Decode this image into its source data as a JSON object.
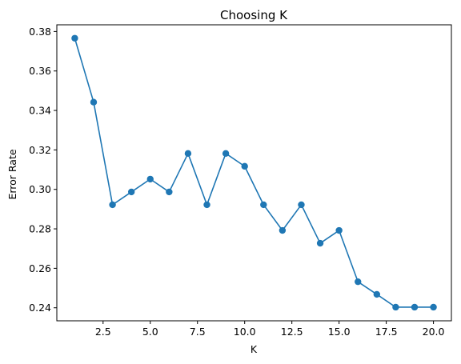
{
  "chart_data": {
    "type": "line",
    "title": "Choosing K",
    "xlabel": "K",
    "ylabel": "Error Rate",
    "xlim": [
      0.05,
      20.95
    ],
    "ylim": [
      0.2334,
      0.3834
    ],
    "x_ticks": [
      2.5,
      5.0,
      7.5,
      10.0,
      12.5,
      15.0,
      17.5,
      20.0
    ],
    "x_tick_labels": [
      "2.5",
      "5.0",
      "7.5",
      "10.0",
      "12.5",
      "15.0",
      "17.5",
      "20.0"
    ],
    "y_ticks": [
      0.24,
      0.26,
      0.28,
      0.3,
      0.32,
      0.34,
      0.36,
      0.38
    ],
    "y_tick_labels": [
      "0.24",
      "0.26",
      "0.28",
      "0.30",
      "0.32",
      "0.34",
      "0.36",
      "0.38"
    ],
    "grid": false,
    "marker": "circle",
    "color": "#1f77b4",
    "series": [
      {
        "x": [
          1,
          2,
          3,
          4,
          5,
          6,
          7,
          8,
          9,
          10,
          11,
          12,
          13,
          14,
          15,
          16,
          17,
          18,
          19,
          20
        ],
        "values": [
          0.3766,
          0.3442,
          0.2922,
          0.2987,
          0.3052,
          0.2987,
          0.3182,
          0.2922,
          0.3182,
          0.3117,
          0.2922,
          0.2792,
          0.2922,
          0.2727,
          0.2792,
          0.2532,
          0.2468,
          0.2403,
          0.2403,
          0.2403
        ]
      }
    ]
  }
}
